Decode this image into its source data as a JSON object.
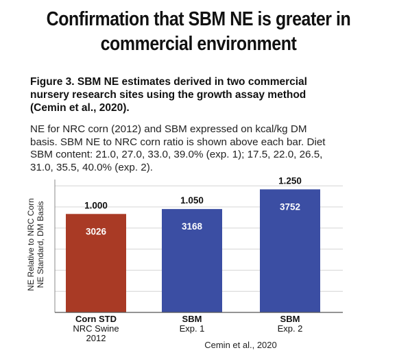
{
  "title_lines": [
    "Confirmation that SBM NE is greater in",
    "commercial environment"
  ],
  "caption_lines": [
    "Figure 3.  SBM NE estimates derived in two commercial",
    "nursery research sites using the growth assay method",
    "(Cemin et al., 2020)."
  ],
  "note_lines": [
    "NE for NRC corn (2012) and SBM expressed on kcal/kg DM",
    "basis. SBM NE to NRC corn ratio is shown above each bar. Diet",
    "SBM content: 21.0, 27.0, 33.0, 39.0% (exp. 1); 17.5, 22.0, 26.5,",
    "31.0, 35.5, 40.0% (exp. 2)."
  ],
  "chart_data": {
    "type": "bar",
    "ylabel_lines": [
      "NE Relative to NRC Corn",
      "NE Standard, DM Basis"
    ],
    "ylim": [
      0,
      1.35
    ],
    "grid": true,
    "categories": [
      {
        "lines": [
          "Corn STD",
          "NRC Swine",
          "2012"
        ]
      },
      {
        "lines": [
          "SBM",
          "Exp. 1"
        ]
      },
      {
        "lines": [
          "SBM",
          "Exp. 2"
        ]
      }
    ],
    "values": [
      1.0,
      1.05,
      1.25
    ],
    "ratio_labels": [
      "1.000",
      "1.050",
      "1.250"
    ],
    "ne_labels": [
      "3026",
      "3168",
      "3752"
    ],
    "colors": [
      "#a93a25",
      "#3b4ea3",
      "#3b4ea3"
    ],
    "group_label": "Cemin et al., 2020"
  }
}
